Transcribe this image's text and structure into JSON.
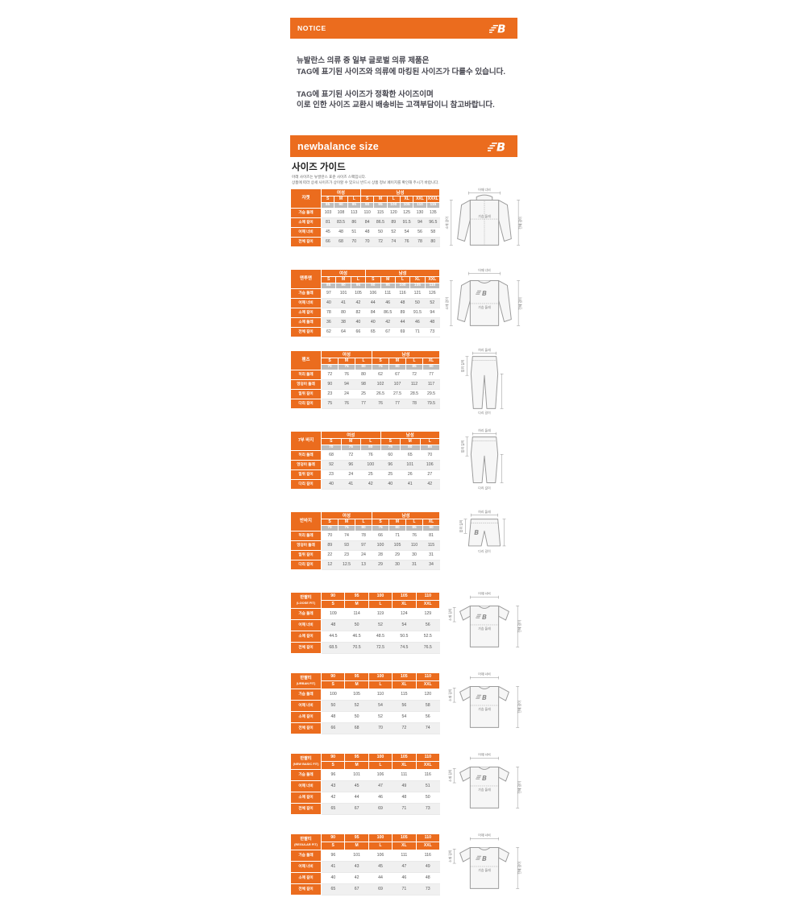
{
  "colors": {
    "accent": "#EB6C1E",
    "size_number_row": "#BDBDBD",
    "alt_row": "#F0F0F0",
    "notice_text": "#46464F"
  },
  "notice": {
    "header": "NOTICE",
    "logo": "new-balance-logo",
    "block1": [
      "뉴발란스 의류 중 일부 글로벌 의류 제품은",
      "TAG에 표기된 사이즈와 의류에 마킹된 사이즈가 다를수 있습니다."
    ],
    "block2": [
      "TAG에 표기된 사이즈가 정확한 사이즈이며",
      "이로 인한 사이즈 교환시 배송비는 고객부담이니 참고바랍니다."
    ]
  },
  "size_section": {
    "header": "newbalance size",
    "title": "사이즈 가이드",
    "subtitle": [
      "아래 사이즈는 뉴발란스 표준 사이즈 스펙입니다.",
      "상품에 따라 상세 사이즈가 상이할 수 있으니 반드시 상품 정보 페이지를 확인해 주시기 바랍니다."
    ]
  },
  "tables": [
    {
      "category": "자켓",
      "kind": "gender",
      "diagram": "jacket",
      "groups": [
        {
          "label": "여성",
          "letters": [
            "S",
            "M",
            "L"
          ],
          "nums": [
            "85",
            "90",
            "95"
          ]
        },
        {
          "label": "남성",
          "letters": [
            "S",
            "M",
            "L",
            "XL",
            "XXL",
            "XXXL"
          ],
          "nums": [
            "90",
            "95",
            "100",
            "105",
            "110",
            "115"
          ]
        }
      ],
      "rows": [
        {
          "label": "가슴 둘레",
          "values": [
            "103",
            "108",
            "113",
            "110",
            "115",
            "120",
            "125",
            "130",
            "135"
          ]
        },
        {
          "label": "소매 길이",
          "values": [
            "81",
            "83.5",
            "86",
            "84",
            "86.5",
            "89",
            "91.5",
            "94",
            "96.5"
          ]
        },
        {
          "label": "어깨 너비",
          "values": [
            "45",
            "48",
            "51",
            "48",
            "50",
            "52",
            "54",
            "56",
            "58"
          ]
        },
        {
          "label": "전체 길이",
          "values": [
            "66",
            "68",
            "70",
            "70",
            "72",
            "74",
            "76",
            "78",
            "80"
          ]
        }
      ],
      "diagram_labels": {
        "top": "어깨 너비",
        "center": "가슴 둘레",
        "left": "소매 길이",
        "right": "전체 길이"
      }
    },
    {
      "category": "맨투맨",
      "kind": "gender",
      "diagram": "sweatshirt",
      "groups": [
        {
          "label": "여성",
          "letters": [
            "S",
            "M",
            "L"
          ],
          "nums": [
            "85",
            "90",
            "95"
          ]
        },
        {
          "label": "남성",
          "letters": [
            "S",
            "M",
            "L",
            "XL",
            "XXL"
          ],
          "nums": [
            "90",
            "95",
            "100",
            "105",
            "110"
          ]
        }
      ],
      "rows": [
        {
          "label": "가슴 둘레",
          "values": [
            "97",
            "101",
            "105",
            "106",
            "111",
            "116",
            "121",
            "126"
          ]
        },
        {
          "label": "어깨 너비",
          "values": [
            "40",
            "41",
            "42",
            "44",
            "46",
            "48",
            "50",
            "52"
          ]
        },
        {
          "label": "소매 길이",
          "values": [
            "78",
            "80",
            "82",
            "84",
            "86.5",
            "89",
            "91.5",
            "94"
          ]
        },
        {
          "label": "소매 둘레",
          "values": [
            "36",
            "38",
            "40",
            "40",
            "42",
            "44",
            "46",
            "48"
          ]
        },
        {
          "label": "전체 길이",
          "values": [
            "62",
            "64",
            "66",
            "65",
            "67",
            "69",
            "71",
            "73"
          ]
        }
      ],
      "diagram_labels": {
        "top": "어깨 너비",
        "center": "가슴 둘레",
        "left": "소매 길이",
        "right": "전체 길이"
      }
    },
    {
      "category": "팬츠",
      "kind": "gender",
      "diagram": "pants",
      "groups": [
        {
          "label": "여성",
          "letters": [
            "S",
            "M",
            "L"
          ],
          "nums": [
            "70",
            "75",
            "80"
          ]
        },
        {
          "label": "남성",
          "letters": [
            "S",
            "M",
            "L",
            "XL"
          ],
          "nums": [
            "75",
            "80",
            "85",
            "90"
          ]
        }
      ],
      "rows": [
        {
          "label": "허리 둘레",
          "values": [
            "72",
            "76",
            "80",
            "62",
            "67",
            "72",
            "77"
          ]
        },
        {
          "label": "엉덩이 둘레",
          "values": [
            "90",
            "94",
            "98",
            "102",
            "107",
            "112",
            "117"
          ]
        },
        {
          "label": "밑위 길이",
          "values": [
            "23",
            "24",
            "25",
            "26.5",
            "27.5",
            "28.5",
            "29.5"
          ]
        },
        {
          "label": "다리 길이",
          "values": [
            "75",
            "76",
            "77",
            "76",
            "77",
            "78",
            "79.5"
          ]
        }
      ],
      "diagram_labels": {
        "top": "허리 둘레",
        "left": "밑위 길이",
        "bottom": "다리 길이"
      }
    },
    {
      "category": "7부 바지",
      "kind": "gender",
      "diagram": "pants7",
      "groups": [
        {
          "label": "여성",
          "letters": [
            "S",
            "M",
            "L"
          ],
          "nums": [
            "70",
            "75",
            "80"
          ]
        },
        {
          "label": "남성",
          "letters": [
            "S",
            "M",
            "L"
          ],
          "nums": [
            "75",
            "80",
            "85"
          ]
        }
      ],
      "rows": [
        {
          "label": "허리 둘레",
          "values": [
            "68",
            "72",
            "76",
            "60",
            "65",
            "70"
          ]
        },
        {
          "label": "엉덩이 둘레",
          "values": [
            "92",
            "96",
            "100",
            "96",
            "101",
            "106"
          ]
        },
        {
          "label": "밑위 길이",
          "values": [
            "23",
            "24",
            "25",
            "25",
            "26",
            "27"
          ]
        },
        {
          "label": "다리 길이",
          "values": [
            "40",
            "41",
            "42",
            "40",
            "41",
            "42"
          ]
        }
      ],
      "diagram_labels": {
        "top": "허리 둘레",
        "left": "밑위 길이",
        "bottom": "다리 길이"
      }
    },
    {
      "category": "반바지",
      "kind": "gender",
      "diagram": "shorts",
      "groups": [
        {
          "label": "여성",
          "letters": [
            "S",
            "M",
            "L"
          ],
          "nums": [
            "70",
            "75",
            "80"
          ]
        },
        {
          "label": "남성",
          "letters": [
            "S",
            "M",
            "L",
            "XL"
          ],
          "nums": [
            "75",
            "80",
            "85",
            "90"
          ]
        }
      ],
      "rows": [
        {
          "label": "허리 둘레",
          "values": [
            "70",
            "74",
            "78",
            "66",
            "71",
            "76",
            "81"
          ]
        },
        {
          "label": "엉덩이 둘레",
          "values": [
            "89",
            "93",
            "97",
            "100",
            "105",
            "110",
            "115"
          ]
        },
        {
          "label": "밑위 길이",
          "values": [
            "22",
            "23",
            "24",
            "28",
            "29",
            "30",
            "31"
          ]
        },
        {
          "label": "다리 길이",
          "values": [
            "12",
            "12.5",
            "13",
            "29",
            "30",
            "31",
            "34"
          ]
        }
      ],
      "diagram_labels": {
        "top": "허리 둘레",
        "left": "밑위 길이",
        "bottom": "다리 길이"
      }
    },
    {
      "category": "반팔티",
      "fit": "(LOOSE FIT)",
      "kind": "fit",
      "diagram": "tshirt",
      "nums": [
        "90",
        "95",
        "100",
        "105",
        "110"
      ],
      "letters": [
        "S",
        "M",
        "L",
        "XL",
        "XXL"
      ],
      "rows": [
        {
          "label": "가슴 둘레",
          "values": [
            "109",
            "114",
            "119",
            "124",
            "129"
          ]
        },
        {
          "label": "어깨 너비",
          "values": [
            "48",
            "50",
            "52",
            "54",
            "56"
          ]
        },
        {
          "label": "소매 길이",
          "values": [
            "44.5",
            "46.5",
            "48.5",
            "50.5",
            "52.5"
          ]
        },
        {
          "label": "전체 길이",
          "values": [
            "68.5",
            "70.5",
            "72.5",
            "74.5",
            "76.5"
          ]
        }
      ],
      "diagram_labels": {
        "top": "어깨 너비",
        "center": "가슴 둘레",
        "left": "소매 길이",
        "right": "전체 길이"
      }
    },
    {
      "category": "반팔티",
      "fit": "(URBAN FIT)",
      "kind": "fit",
      "diagram": "tshirt",
      "nums": [
        "90",
        "95",
        "100",
        "105",
        "110"
      ],
      "letters": [
        "S",
        "M",
        "L",
        "XL",
        "XXL"
      ],
      "rows": [
        {
          "label": "가슴 둘레",
          "values": [
            "100",
            "105",
            "110",
            "115",
            "120"
          ]
        },
        {
          "label": "어깨 너비",
          "values": [
            "50",
            "52",
            "54",
            "56",
            "58"
          ]
        },
        {
          "label": "소매 길이",
          "values": [
            "48",
            "50",
            "52",
            "54",
            "56"
          ]
        },
        {
          "label": "전체 길이",
          "values": [
            "66",
            "68",
            "70",
            "72",
            "74"
          ]
        }
      ],
      "diagram_labels": {
        "top": "어깨 너비",
        "center": "가슴 둘레",
        "left": "소매 길이",
        "right": "전체 길이"
      }
    },
    {
      "category": "반팔티",
      "fit": "(NEW BASIC FIT)",
      "kind": "fit",
      "diagram": "tshirt",
      "nums": [
        "90",
        "95",
        "100",
        "105",
        "110"
      ],
      "letters": [
        "S",
        "M",
        "L",
        "XL",
        "XXL"
      ],
      "rows": [
        {
          "label": "가슴 둘레",
          "values": [
            "96",
            "101",
            "106",
            "111",
            "116"
          ]
        },
        {
          "label": "어깨 너비",
          "values": [
            "43",
            "45",
            "47",
            "49",
            "51"
          ]
        },
        {
          "label": "소매 길이",
          "values": [
            "42",
            "44",
            "46",
            "48",
            "50"
          ]
        },
        {
          "label": "전체 길이",
          "values": [
            "65",
            "67",
            "69",
            "71",
            "73"
          ]
        }
      ],
      "diagram_labels": {
        "top": "어깨 너비",
        "center": "가슴 둘레",
        "left": "소매 길이",
        "right": "전체 길이"
      }
    },
    {
      "category": "반팔티",
      "fit": "(REGULAR FIT)",
      "kind": "fit",
      "diagram": "tshirt",
      "nums": [
        "90",
        "95",
        "100",
        "105",
        "110"
      ],
      "letters": [
        "S",
        "M",
        "L",
        "XL",
        "XXL"
      ],
      "rows": [
        {
          "label": "가슴 둘레",
          "values": [
            "96",
            "101",
            "106",
            "111",
            "116"
          ]
        },
        {
          "label": "어깨 너비",
          "values": [
            "41",
            "43",
            "45",
            "47",
            "49"
          ]
        },
        {
          "label": "소매 길이",
          "values": [
            "40",
            "42",
            "44",
            "46",
            "48"
          ]
        },
        {
          "label": "전체 길이",
          "values": [
            "65",
            "67",
            "69",
            "71",
            "73"
          ]
        }
      ],
      "diagram_labels": {
        "top": "어깨 너비",
        "center": "가슴 둘레",
        "left": "소매 길이",
        "right": "전체 길이"
      }
    }
  ]
}
